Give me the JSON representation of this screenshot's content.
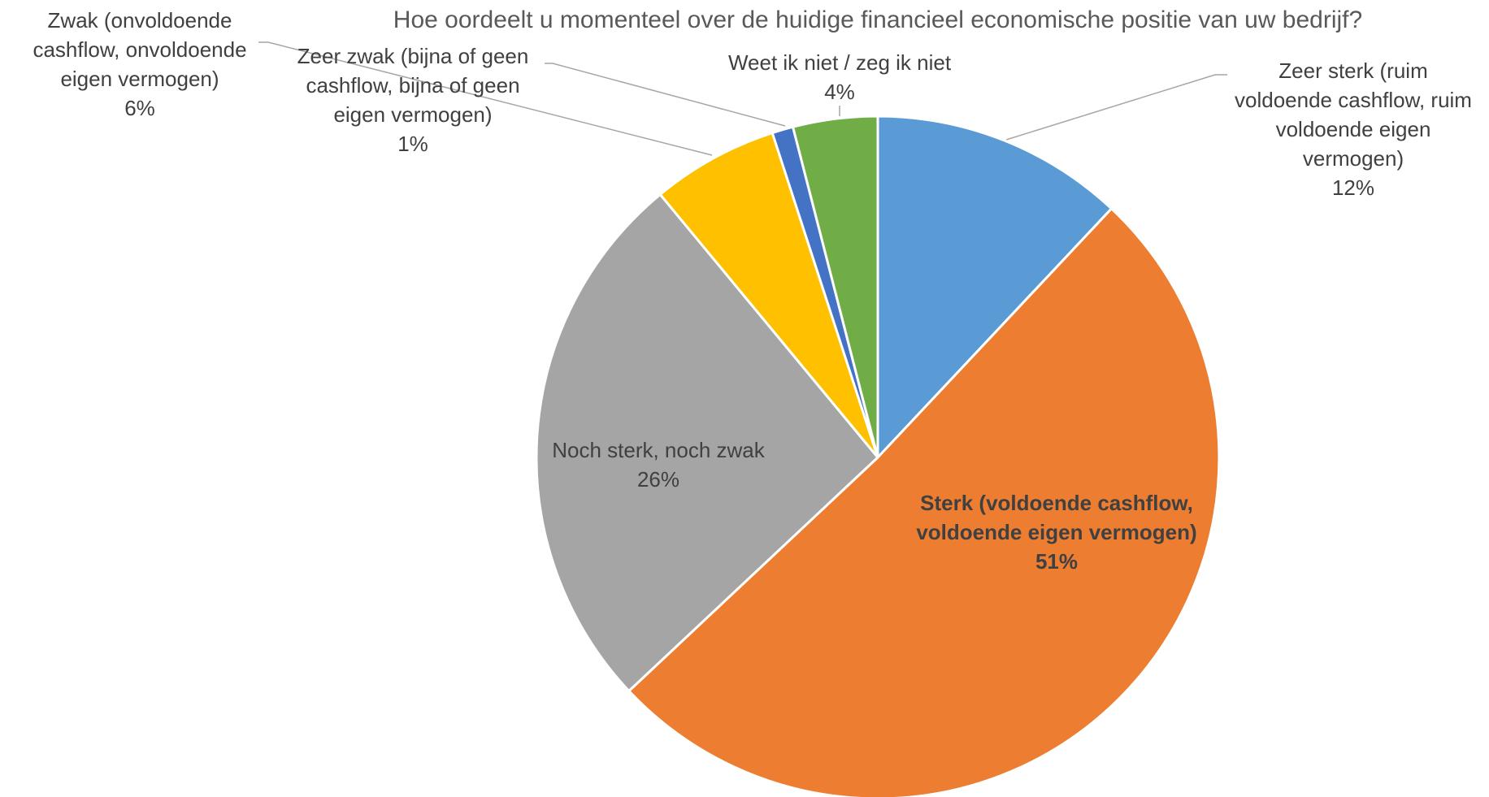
{
  "chart_data": {
    "type": "pie",
    "title": "Hoe oordeelt u momenteel over de huidige financieel economische positie van uw bedrijf?",
    "slices": [
      {
        "label_lines": [
          "Zeer sterk (ruim",
          "voldoende cashflow, ruim",
          "voldoende eigen",
          "vermogen)"
        ],
        "value": 12,
        "value_label": "12%",
        "color": "#5B9BD5"
      },
      {
        "label_lines": [
          "Sterk (voldoende cashflow,",
          "voldoende eigen vermogen)"
        ],
        "value": 51,
        "value_label": "51%",
        "color": "#ED7D31"
      },
      {
        "label_lines": [
          "Noch sterk, noch zwak"
        ],
        "value": 26,
        "value_label": "26%",
        "color": "#A5A5A5"
      },
      {
        "label_lines": [
          "Zwak (onvoldoende",
          "cashflow, onvoldoende",
          "eigen vermogen)"
        ],
        "value": 6,
        "value_label": "6%",
        "color": "#FFC000"
      },
      {
        "label_lines": [
          "Zeer zwak (bijna of geen",
          "cashflow, bijna of geen",
          "eigen vermogen)"
        ],
        "value": 1,
        "value_label": "1%",
        "color": "#4472C4"
      },
      {
        "label_lines": [
          "Weet ik niet / zeg ik niet"
        ],
        "value": 4,
        "value_label": "4%",
        "color": "#70AD47"
      }
    ]
  }
}
